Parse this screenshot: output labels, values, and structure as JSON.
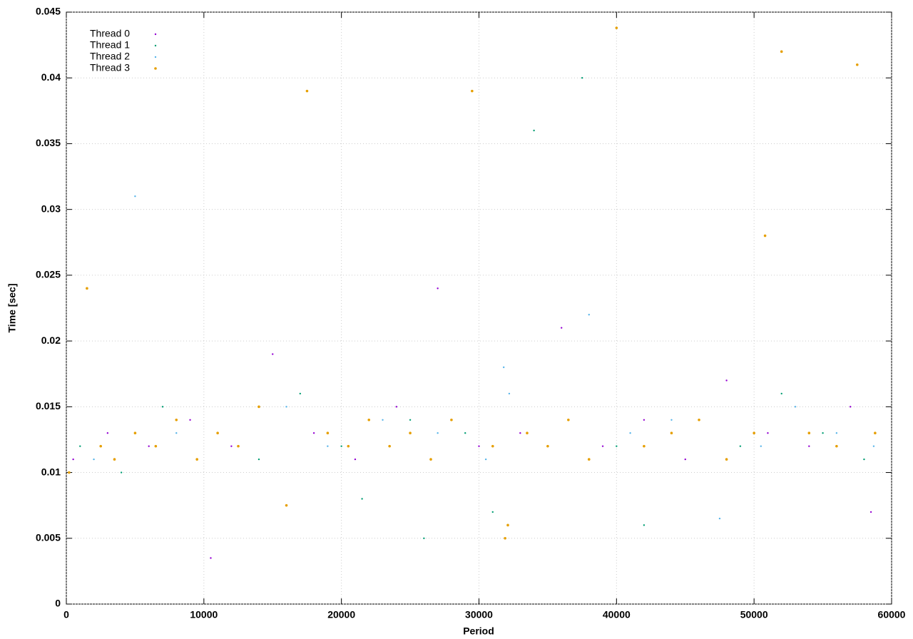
{
  "chart_data": {
    "type": "scatter",
    "xlabel": "Period",
    "ylabel": "Time [sec]",
    "xlim": [
      0,
      60000
    ],
    "xticks": [
      0,
      10000,
      20000,
      30000,
      40000,
      50000,
      60000
    ],
    "ylim": [
      0,
      0.045
    ],
    "yticks": [
      0,
      0.005,
      0.01,
      0.015,
      0.02,
      0.025,
      0.03,
      0.035,
      0.04,
      0.045
    ],
    "grid": true,
    "legend": "top-left",
    "series": [
      {
        "name": "Thread 0",
        "color": "#9400d3",
        "x": [
          500,
          3000,
          6000,
          9000,
          10500,
          12000,
          15000,
          18000,
          21000,
          24000,
          27000,
          30000,
          33000,
          36000,
          39000,
          42000,
          45000,
          48000,
          51000,
          54000,
          57000,
          58500
        ],
        "values": [
          0.011,
          0.013,
          0.012,
          0.014,
          0.0035,
          0.012,
          0.019,
          0.013,
          0.011,
          0.015,
          0.024,
          0.012,
          0.013,
          0.021,
          0.012,
          0.014,
          0.011,
          0.017,
          0.013,
          0.012,
          0.015,
          0.007
        ]
      },
      {
        "name": "Thread 1",
        "color": "#009e73",
        "x": [
          1000,
          4000,
          7000,
          11000,
          14000,
          17000,
          20000,
          21500,
          25000,
          26000,
          29000,
          31000,
          34000,
          37500,
          40000,
          42000,
          46000,
          49000,
          52000,
          55000,
          58000
        ],
        "values": [
          0.012,
          0.01,
          0.015,
          0.013,
          0.011,
          0.016,
          0.012,
          0.008,
          0.014,
          0.005,
          0.013,
          0.007,
          0.036,
          0.04,
          0.012,
          0.006,
          0.014,
          0.012,
          0.016,
          0.013,
          0.011
        ]
      },
      {
        "name": "Thread 2",
        "color": "#56b4e9",
        "x": [
          2000,
          5000,
          8000,
          12500,
          16000,
          19000,
          23000,
          27000,
          30500,
          31800,
          32200,
          35000,
          38000,
          41000,
          44000,
          47500,
          50500,
          53000,
          56000,
          58700
        ],
        "values": [
          0.011,
          0.031,
          0.013,
          0.012,
          0.015,
          0.012,
          0.014,
          0.013,
          0.011,
          0.018,
          0.016,
          0.012,
          0.022,
          0.013,
          0.014,
          0.0065,
          0.012,
          0.015,
          0.013,
          0.012
        ]
      },
      {
        "name": "Thread 3",
        "color": "#e69f00",
        "x": [
          200,
          1500,
          2500,
          3500,
          5000,
          6500,
          8000,
          9500,
          11000,
          12500,
          14000,
          16000,
          17500,
          19000,
          20500,
          22000,
          23500,
          25000,
          26500,
          28000,
          29500,
          31000,
          31900,
          32100,
          33500,
          35000,
          36500,
          38000,
          40000,
          42000,
          44000,
          46000,
          48000,
          50000,
          50800,
          52000,
          54000,
          56000,
          57500,
          58800
        ],
        "values": [
          0.01,
          0.024,
          0.012,
          0.011,
          0.013,
          0.012,
          0.014,
          0.011,
          0.013,
          0.012,
          0.015,
          0.0075,
          0.039,
          0.013,
          0.012,
          0.014,
          0.012,
          0.013,
          0.011,
          0.014,
          0.039,
          0.012,
          0.005,
          0.006,
          0.013,
          0.012,
          0.014,
          0.011,
          0.0438,
          0.012,
          0.013,
          0.014,
          0.011,
          0.013,
          0.028,
          0.042,
          0.013,
          0.012,
          0.041,
          0.013
        ]
      }
    ]
  }
}
